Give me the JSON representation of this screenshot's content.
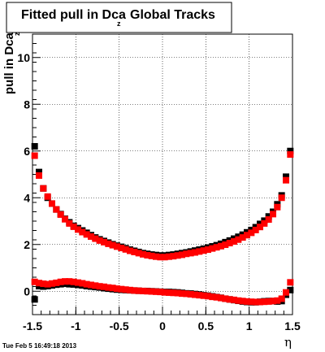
{
  "chart_data": {
    "type": "scatter",
    "title": "Fitted pull in Dca",
    "title_subscript": "z",
    "title_suffix": "Global Tracks",
    "ylabel": "pull in Dca",
    "ylabel_subscript": "z",
    "xlabel": "η",
    "timestamp": "Tue Feb  5 16:49:18 2013",
    "xlim": [
      -1.5,
      1.5
    ],
    "ylim": [
      -1.0,
      11.0
    ],
    "x_ticks": [
      -1.5,
      -1,
      -0.5,
      0,
      0.5,
      1,
      1.5
    ],
    "x_tick_labels": [
      "-1.5",
      "-1",
      "-0.5",
      "0",
      "0.5",
      "1",
      "1.5"
    ],
    "y_ticks": [
      0,
      2,
      4,
      6,
      8,
      10
    ],
    "y_tick_labels": [
      "0",
      "2",
      "4",
      "6",
      "8",
      "10"
    ],
    "grid": true,
    "x": [
      -1.475,
      -1.425,
      -1.375,
      -1.325,
      -1.275,
      -1.225,
      -1.175,
      -1.125,
      -1.075,
      -1.025,
      -0.975,
      -0.925,
      -0.875,
      -0.825,
      -0.775,
      -0.725,
      -0.675,
      -0.625,
      -0.575,
      -0.525,
      -0.475,
      -0.425,
      -0.375,
      -0.325,
      -0.275,
      -0.225,
      -0.175,
      -0.125,
      -0.075,
      -0.025,
      0.025,
      0.075,
      0.125,
      0.175,
      0.225,
      0.275,
      0.325,
      0.375,
      0.425,
      0.475,
      0.525,
      0.575,
      0.625,
      0.675,
      0.725,
      0.775,
      0.825,
      0.875,
      0.925,
      0.975,
      1.025,
      1.075,
      1.125,
      1.175,
      1.225,
      1.275,
      1.325,
      1.375,
      1.425,
      1.475
    ],
    "series": [
      {
        "color": "#000000",
        "group": "width",
        "values": [
          6.2,
          5.1,
          4.4,
          4.0,
          3.75,
          3.5,
          3.3,
          3.1,
          2.95,
          2.8,
          2.7,
          2.6,
          2.5,
          2.4,
          2.3,
          2.22,
          2.15,
          2.08,
          2.01,
          1.95,
          1.9,
          1.84,
          1.78,
          1.73,
          1.68,
          1.63,
          1.6,
          1.57,
          1.55,
          1.53,
          1.53,
          1.55,
          1.57,
          1.6,
          1.63,
          1.66,
          1.7,
          1.74,
          1.78,
          1.82,
          1.87,
          1.92,
          1.97,
          2.03,
          2.1,
          2.17,
          2.25,
          2.33,
          2.42,
          2.52,
          2.62,
          2.74,
          2.88,
          3.02,
          3.2,
          3.4,
          3.72,
          4.1,
          4.9,
          6.0
        ]
      },
      {
        "color": "#ff0000",
        "group": "width",
        "values": [
          5.8,
          4.95,
          4.4,
          4.05,
          3.75,
          3.5,
          3.28,
          3.08,
          2.9,
          2.76,
          2.64,
          2.53,
          2.43,
          2.34,
          2.25,
          2.17,
          2.1,
          2.03,
          1.97,
          1.91,
          1.85,
          1.79,
          1.73,
          1.68,
          1.63,
          1.58,
          1.54,
          1.51,
          1.48,
          1.46,
          1.46,
          1.48,
          1.5,
          1.53,
          1.56,
          1.6,
          1.63,
          1.66,
          1.7,
          1.74,
          1.78,
          1.83,
          1.88,
          1.93,
          1.99,
          2.06,
          2.13,
          2.21,
          2.3,
          2.4,
          2.5,
          2.62,
          2.75,
          2.9,
          3.07,
          3.3,
          3.6,
          4.0,
          4.75,
          5.85
        ]
      },
      {
        "color": "#000000",
        "group": "mean",
        "values": [
          -0.35,
          0.22,
          0.2,
          0.22,
          0.25,
          0.28,
          0.3,
          0.32,
          0.3,
          0.29,
          0.27,
          0.25,
          0.22,
          0.2,
          0.18,
          0.16,
          0.13,
          0.11,
          0.09,
          0.07,
          0.06,
          0.05,
          0.04,
          0.03,
          0.02,
          0.01,
          0.01,
          0.0,
          -0.01,
          -0.02,
          -0.03,
          -0.03,
          -0.04,
          -0.05,
          -0.07,
          -0.09,
          -0.1,
          -0.12,
          -0.14,
          -0.17,
          -0.19,
          -0.22,
          -0.25,
          -0.28,
          -0.32,
          -0.35,
          -0.38,
          -0.41,
          -0.44,
          -0.46,
          -0.47,
          -0.47,
          -0.45,
          -0.43,
          -0.42,
          -0.42,
          -0.44,
          -0.42,
          -0.15,
          0.05
        ]
      },
      {
        "color": "#ff0000",
        "group": "mean",
        "values": [
          0.4,
          0.35,
          0.32,
          0.3,
          0.33,
          0.36,
          0.4,
          0.42,
          0.42,
          0.4,
          0.37,
          0.34,
          0.3,
          0.27,
          0.24,
          0.21,
          0.19,
          0.16,
          0.14,
          0.11,
          0.09,
          0.07,
          0.05,
          0.03,
          0.02,
          0.01,
          0.0,
          -0.01,
          -0.02,
          -0.03,
          -0.05,
          -0.06,
          -0.07,
          -0.08,
          -0.1,
          -0.11,
          -0.13,
          -0.15,
          -0.17,
          -0.19,
          -0.21,
          -0.24,
          -0.26,
          -0.29,
          -0.32,
          -0.35,
          -0.37,
          -0.4,
          -0.42,
          -0.44,
          -0.45,
          -0.46,
          -0.46,
          -0.45,
          -0.44,
          -0.42,
          -0.4,
          -0.32,
          -0.05,
          0.38
        ]
      }
    ]
  }
}
